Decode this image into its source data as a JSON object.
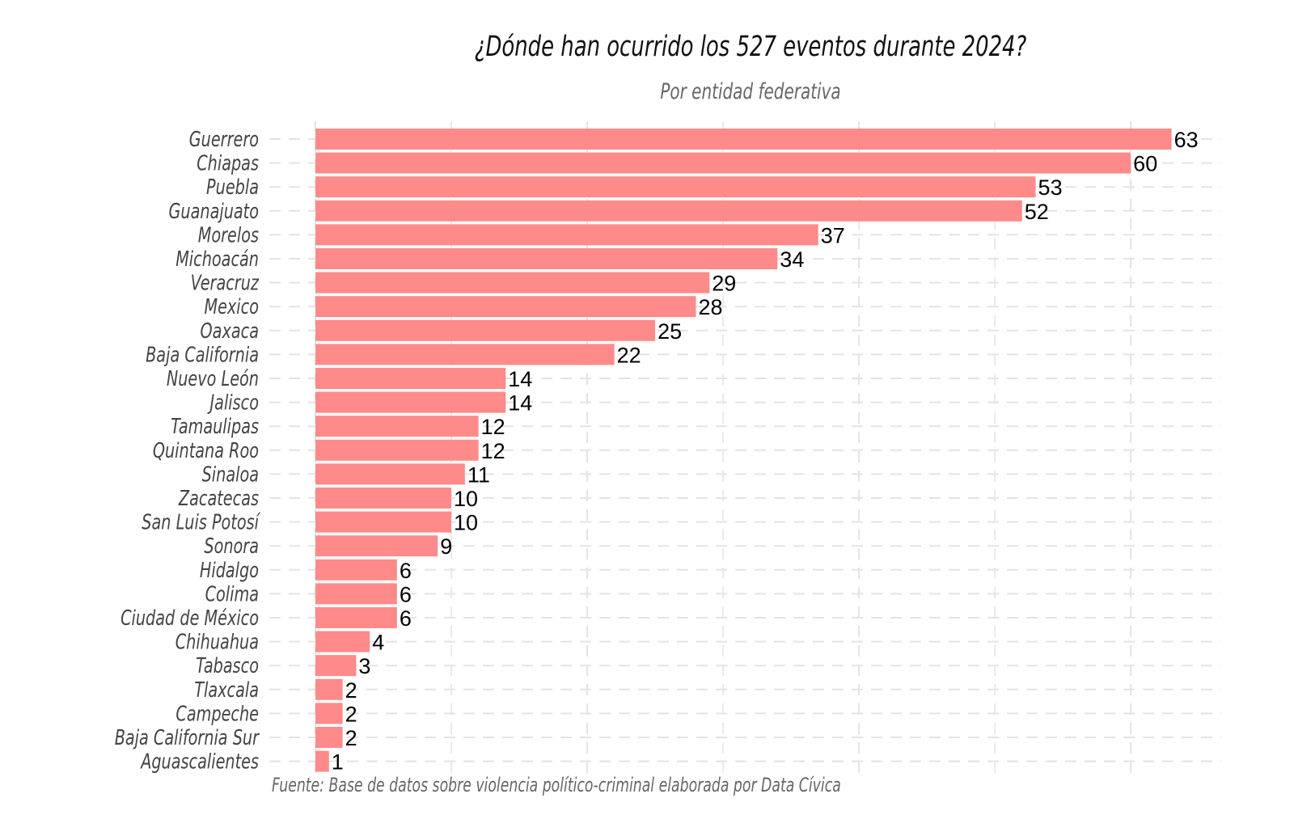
{
  "chart_data": {
    "type": "bar",
    "orientation": "horizontal",
    "title": "¿Dónde han ocurrido los 527 eventos durante 2024?",
    "subtitle": "Por entidad federativa",
    "caption": "Fuente: Base de datos sobre violencia político-criminal elaborada por Data Cívica",
    "xlabel": "",
    "ylabel": "",
    "xlim": [
      0,
      66
    ],
    "grid": true,
    "bar_color": "#FF8A8A",
    "categories": [
      "Guerrero",
      "Chiapas",
      "Puebla",
      "Guanajuato",
      "Morelos",
      "Michoacán",
      "Veracruz",
      "Mexico",
      "Oaxaca",
      "Baja California",
      "Nuevo León",
      "Jalisco",
      "Tamaulipas",
      "Quintana Roo",
      "Sinaloa",
      "Zacatecas",
      "San Luis Potosí",
      "Sonora",
      "Hidalgo",
      "Colima",
      "Ciudad de México",
      "Chihuahua",
      "Tabasco",
      "Tlaxcala",
      "Campeche",
      "Baja California Sur",
      "Aguascalientes"
    ],
    "values": [
      63,
      60,
      53,
      52,
      37,
      34,
      29,
      28,
      25,
      22,
      14,
      14,
      12,
      12,
      11,
      10,
      10,
      9,
      6,
      6,
      6,
      4,
      3,
      2,
      2,
      2,
      1
    ],
    "value_labels": [
      "63",
      "60",
      "53",
      "52",
      "37",
      "34",
      "29",
      "28",
      "25",
      "22",
      "14",
      "14",
      "12",
      "12",
      "11",
      "10",
      "10",
      "9",
      "6",
      "6",
      "6",
      "4",
      "3",
      "2",
      "2",
      "2",
      "1"
    ]
  }
}
